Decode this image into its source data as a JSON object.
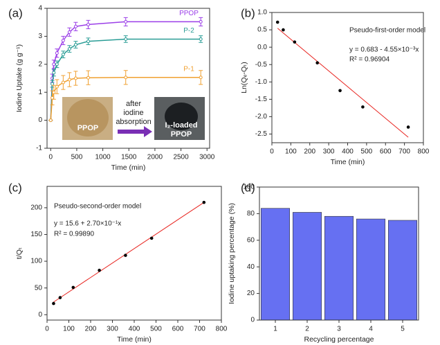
{
  "chart_data": [
    {
      "type": "line",
      "panel_label": "(a)",
      "x_label": "Time (min)",
      "y_label": "Iodine Uptake (g g⁻¹)",
      "x": [
        0,
        30,
        60,
        120,
        240,
        360,
        480,
        720,
        1440,
        2880
      ],
      "series": [
        {
          "name": "PPOP",
          "color": "#9b3fe8",
          "values": [
            0,
            1.5,
            2.0,
            2.4,
            2.85,
            3.15,
            3.35,
            3.42,
            3.52,
            3.52
          ],
          "errors": [
            0,
            0.15,
            0.15,
            0.15,
            0.15,
            0.15,
            0.15,
            0.15,
            0.15,
            0.15
          ]
        },
        {
          "name": "P-2",
          "color": "#2a9d96",
          "values": [
            0,
            1.3,
            1.7,
            2.0,
            2.35,
            2.55,
            2.7,
            2.82,
            2.9,
            2.9
          ],
          "errors": [
            0,
            0.12,
            0.12,
            0.12,
            0.12,
            0.12,
            0.12,
            0.12,
            0.12,
            0.12
          ]
        },
        {
          "name": "P-1",
          "color": "#f0a030",
          "values": [
            0,
            0.8,
            1.0,
            1.2,
            1.35,
            1.45,
            1.5,
            1.52,
            1.53,
            1.53
          ],
          "errors": [
            0,
            0.25,
            0.25,
            0.25,
            0.25,
            0.25,
            0.25,
            0.25,
            0.25,
            0.25
          ]
        }
      ],
      "xlim": [
        -70,
        3050
      ],
      "xticks": [
        0,
        500,
        1000,
        1500,
        2000,
        2500,
        3000
      ],
      "ylim": [
        -1,
        4
      ],
      "yticks": [
        -1,
        0,
        1,
        2,
        3,
        4
      ],
      "inset_text": [
        "PPOP",
        "after",
        "iodine",
        "absorption",
        "I₂-loaded",
        "PPOP"
      ]
    },
    {
      "type": "scatter",
      "panel_label": "(b)",
      "x_label": "Time (min)",
      "y_label": "Ln(Qₑ-Qₜ)",
      "x": [
        30,
        60,
        120,
        240,
        360,
        480,
        720
      ],
      "values": [
        0.72,
        0.5,
        0.15,
        -0.45,
        -1.25,
        -1.72,
        -2.3
      ],
      "color": "#000000",
      "fit": {
        "x": [
          30,
          720
        ],
        "y": [
          0.5465,
          -2.593
        ],
        "color": "#e8231e"
      },
      "annotations": [
        "Pseudo-first-order model",
        "y = 0.683 - 4.55×10⁻³x",
        "R² = 0.96904"
      ],
      "xlim": [
        0,
        800
      ],
      "xticks": [
        0,
        100,
        200,
        300,
        400,
        500,
        600,
        700,
        800
      ],
      "ylim": [
        -2.75,
        1.0
      ],
      "yticks": [
        -2.5,
        {
          "value": -2,
          "label": "-2.0"
        },
        -1.5,
        {
          "value": -1,
          "label": "-1.0"
        },
        -0.5,
        {
          "value": 0,
          "label": "0.0"
        },
        0.5,
        {
          "value": 1,
          "label": "1.0"
        }
      ]
    },
    {
      "type": "scatter",
      "panel_label": "(c)",
      "x_label": "Time (min)",
      "y_label": "t/Qₜ",
      "x": [
        30,
        60,
        120,
        240,
        360,
        480,
        720
      ],
      "values": [
        21,
        32,
        51,
        83,
        111,
        143,
        210
      ],
      "color": "#000000",
      "fit": {
        "x": [
          30,
          720
        ],
        "y": [
          23.7,
          210
        ],
        "color": "#e8231e"
      },
      "annotations": [
        "Pseudo-second-order model",
        "y = 15.6 + 2.70×10⁻¹x",
        "R² = 0.99890"
      ],
      "xlim": [
        0,
        800
      ],
      "xticks": [
        0,
        100,
        200,
        300,
        400,
        500,
        600,
        700,
        800
      ],
      "ylim": [
        -10,
        240
      ],
      "yticks": [
        0,
        50,
        100,
        150,
        200
      ]
    },
    {
      "type": "bar",
      "panel_label": "(d)",
      "x_label": "Recycling percentage",
      "y_label": "Iodine uptaking percentage (%)",
      "categories": [
        "1",
        "2",
        "3",
        "4",
        "5"
      ],
      "values": [
        84,
        81,
        78,
        76,
        75
      ],
      "color": "#6670f2",
      "ylim": [
        0,
        100
      ],
      "yticks": [
        0,
        20,
        40,
        60,
        80,
        100
      ]
    }
  ]
}
